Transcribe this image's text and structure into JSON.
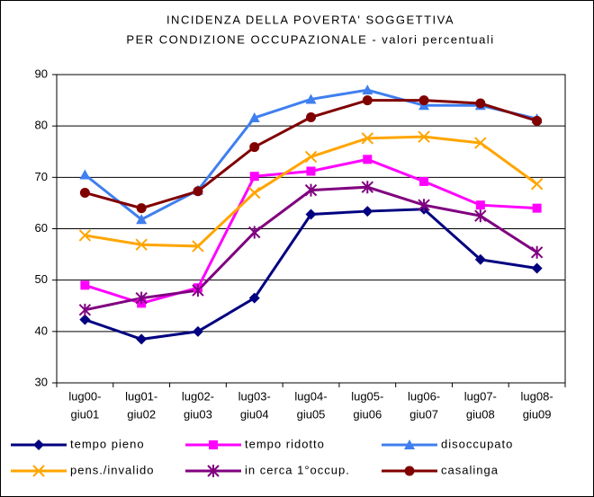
{
  "chart_data": {
    "type": "line",
    "title": [
      "INCIDENZA DELLA POVERTA' SOGGETTIVA",
      "PER CONDIZIONE OCCUPAZIONALE - valori percentuali"
    ],
    "categories": [
      [
        "lug00-",
        "giu01"
      ],
      [
        "lug01-",
        "giu02"
      ],
      [
        "lug02-",
        "giu03"
      ],
      [
        "lug03-",
        "giu04"
      ],
      [
        "lug04-",
        "giu05"
      ],
      [
        "lug05-",
        "giu06"
      ],
      [
        "lug06-",
        "giu07"
      ],
      [
        "lug07-",
        "giu08"
      ],
      [
        "lug08-",
        "giu09"
      ]
    ],
    "ylim": [
      30,
      90
    ],
    "yticks": [
      30,
      40,
      50,
      60,
      70,
      80,
      90
    ],
    "grid": true,
    "legend": "bottom",
    "series": [
      {
        "name": "tempo pieno",
        "color": "#000080",
        "marker": "diamond",
        "values": [
          42.3,
          38.5,
          40,
          46.5,
          62.8,
          63.4,
          63.8,
          54,
          52.3
        ]
      },
      {
        "name": "tempo ridotto",
        "color": "#ff00ff",
        "marker": "square",
        "values": [
          49,
          45.5,
          48.5,
          70.2,
          71.2,
          73.5,
          69.2,
          64.6,
          64
        ]
      },
      {
        "name": "disoccupato",
        "color": "#3f7fef",
        "marker": "triangle",
        "values": [
          70.5,
          61.8,
          67.5,
          81.6,
          85.2,
          87,
          84,
          84,
          81.4
        ]
      },
      {
        "name": "pens./invalido",
        "color": "#ffa500",
        "marker": "x",
        "values": [
          58.7,
          56.9,
          56.6,
          67,
          74,
          77.6,
          77.9,
          76.7,
          68.7
        ]
      },
      {
        "name": "in cerca 1°occup.",
        "color": "#800080",
        "marker": "star",
        "values": [
          44.2,
          46.5,
          48,
          59.3,
          67.5,
          68.1,
          64.6,
          62.5,
          55.4
        ]
      },
      {
        "name": "casalinga",
        "color": "#800000",
        "marker": "circle",
        "values": [
          67,
          64,
          67.3,
          75.9,
          81.7,
          85,
          85,
          84.4,
          81
        ]
      }
    ]
  }
}
